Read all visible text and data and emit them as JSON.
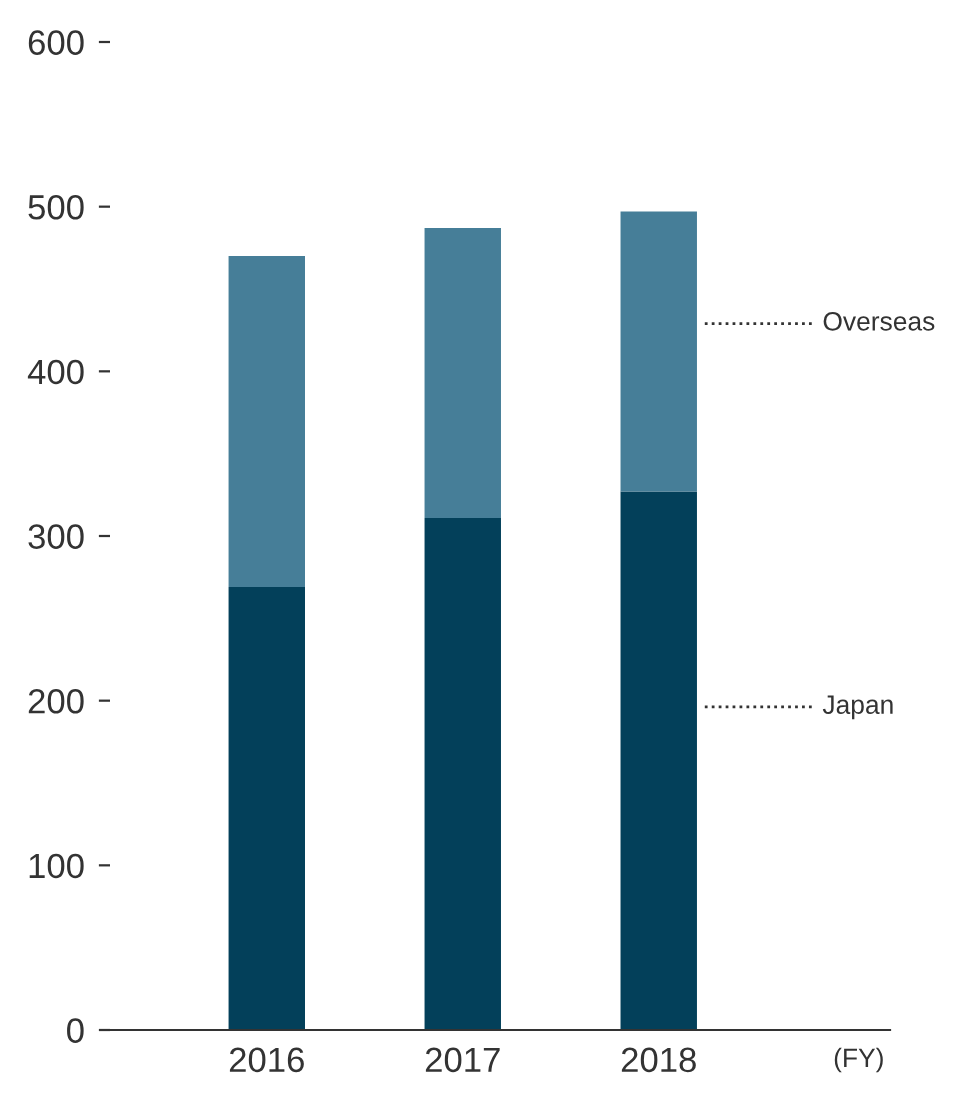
{
  "chart_data": {
    "type": "bar",
    "stacked": true,
    "xlabel": "(FY)",
    "categories": [
      "2016",
      "2017",
      "2018"
    ],
    "series": [
      {
        "name": "Japan",
        "color": "#03405a",
        "values": [
          269,
          311,
          327
        ]
      },
      {
        "name": "Overseas",
        "color": "#467e98",
        "values": [
          201,
          176,
          170
        ]
      }
    ],
    "ylim": [
      0,
      600
    ],
    "yticks": [
      0,
      100,
      200,
      300,
      400,
      500,
      600
    ],
    "grid": false,
    "legend": false
  }
}
